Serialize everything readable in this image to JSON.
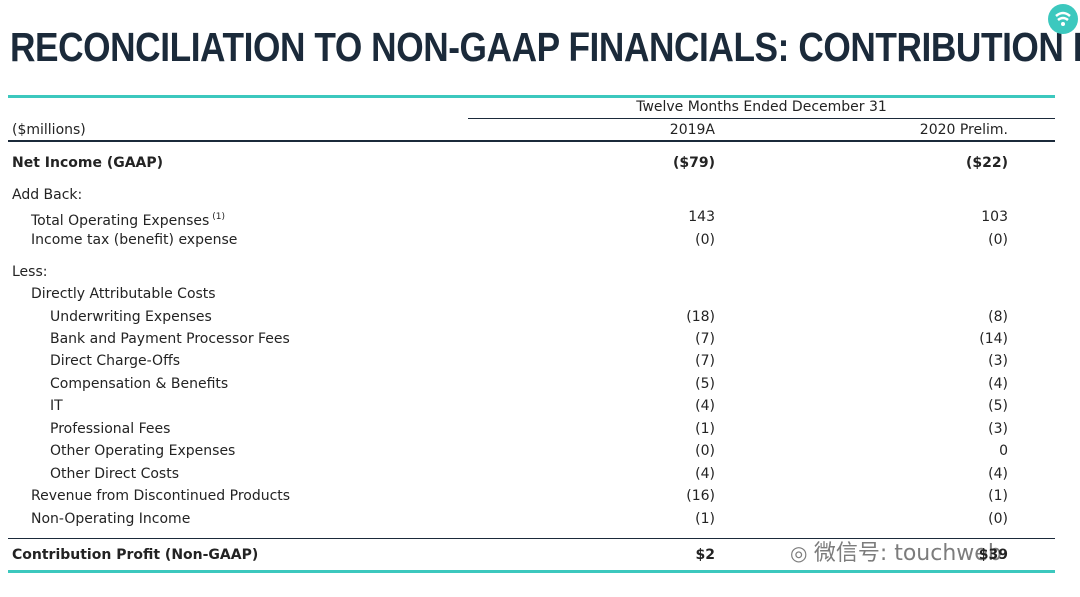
{
  "header": {
    "title": "RECONCILIATION TO NON-GAAP FINANCIALS: CONTRIBUTION PROFIT"
  },
  "table": {
    "period": "Twelve Months Ended December 31",
    "units": "($millions)",
    "columns": [
      "2019A",
      "2020 Prelim."
    ],
    "rows": [
      {
        "label": "Net Income (GAAP)",
        "values": [
          "($79)",
          "($22)"
        ]
      },
      {
        "label": "Add Back:"
      },
      {
        "label": "Total Operating Expenses",
        "note": "(1)",
        "values": [
          "143",
          "103"
        ]
      },
      {
        "label": "Income tax (benefit) expense",
        "values": [
          "(0)",
          "(0)"
        ]
      },
      {
        "label": "Less:"
      },
      {
        "label": "Directly Attributable Costs"
      },
      {
        "label": "Underwriting Expenses",
        "values": [
          "(18)",
          "(8)"
        ]
      },
      {
        "label": "Bank and Payment Processor Fees",
        "values": [
          "(7)",
          "(14)"
        ]
      },
      {
        "label": "Direct Charge-Offs",
        "values": [
          "(7)",
          "(3)"
        ]
      },
      {
        "label": "Compensation & Benefits",
        "values": [
          "(5)",
          "(4)"
        ]
      },
      {
        "label": "IT",
        "values": [
          "(4)",
          "(5)"
        ]
      },
      {
        "label": "Professional Fees",
        "values": [
          "(1)",
          "(3)"
        ]
      },
      {
        "label": "Other Operating Expenses",
        "values": [
          "(0)",
          "0"
        ]
      },
      {
        "label": "Other Direct Costs",
        "values": [
          "(4)",
          "(4)"
        ]
      },
      {
        "label": "Revenue from Discontinued Products",
        "values": [
          "(16)",
          "(1)"
        ]
      },
      {
        "label": "Non-Operating Income",
        "values": [
          "(1)",
          "(0)"
        ]
      },
      {
        "label": "Contribution Profit (Non-GAAP)",
        "values": [
          "$2",
          "$39"
        ]
      }
    ]
  },
  "watermark": "微信号: touchweb"
}
